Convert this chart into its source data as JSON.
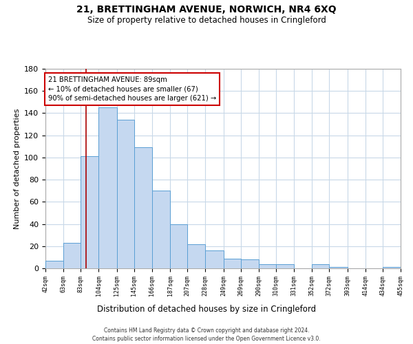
{
  "title": "21, BRETTINGHAM AVENUE, NORWICH, NR4 6XQ",
  "subtitle": "Size of property relative to detached houses in Cringleford",
  "xlabel": "Distribution of detached houses by size in Cringleford",
  "ylabel": "Number of detached properties",
  "bar_color": "#c5d8f0",
  "bar_edge_color": "#5a9fd4",
  "bin_edges": [
    42,
    63,
    83,
    104,
    125,
    145,
    166,
    187,
    207,
    228,
    249,
    269,
    290,
    310,
    331,
    352,
    372,
    393,
    414,
    434,
    455
  ],
  "bar_heights": [
    7,
    23,
    101,
    145,
    134,
    109,
    70,
    40,
    22,
    16,
    9,
    8,
    4,
    4,
    0,
    4,
    1,
    0,
    0,
    1
  ],
  "tick_labels": [
    "42sqm",
    "63sqm",
    "83sqm",
    "104sqm",
    "125sqm",
    "145sqm",
    "166sqm",
    "187sqm",
    "207sqm",
    "228sqm",
    "249sqm",
    "269sqm",
    "290sqm",
    "310sqm",
    "331sqm",
    "352sqm",
    "372sqm",
    "393sqm",
    "414sqm",
    "434sqm",
    "455sqm"
  ],
  "vline_x": 89,
  "vline_color": "#aa0000",
  "annotation_lines": [
    "21 BRETTINGHAM AVENUE: 89sqm",
    "← 10% of detached houses are smaller (67)",
    "90% of semi-detached houses are larger (621) →"
  ],
  "annotation_box_color": "#cc0000",
  "ylim": [
    0,
    180
  ],
  "yticks": [
    0,
    20,
    40,
    60,
    80,
    100,
    120,
    140,
    160,
    180
  ],
  "footer_lines": [
    "Contains HM Land Registry data © Crown copyright and database right 2024.",
    "Contains public sector information licensed under the Open Government Licence v3.0."
  ],
  "background_color": "#ffffff",
  "grid_color": "#c8d8e8"
}
